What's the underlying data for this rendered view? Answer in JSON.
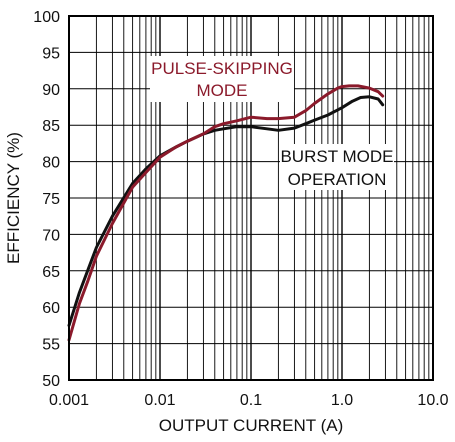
{
  "chart_data": {
    "type": "line",
    "title": "",
    "xlabel": "OUTPUT CURRENT (A)",
    "ylabel": "EFFICIENCY (%)",
    "xscale": "log",
    "xlim": [
      0.001,
      10.0
    ],
    "ylim": [
      50,
      100
    ],
    "grid": true,
    "x_tick_labels": [
      "0.001",
      "0.01",
      "0.1",
      "1.0",
      "10.0"
    ],
    "y_tick_labels": [
      "50",
      "55",
      "60",
      "65",
      "70",
      "75",
      "80",
      "85",
      "90",
      "95",
      "100"
    ],
    "colors": {
      "pulse_skipping": "#8b1a2b",
      "burst_mode": "#111111",
      "grid": "#000000"
    },
    "annotations": [
      {
        "lines": [
          "PULSE-SKIPPING",
          "MODE"
        ],
        "series": "pulse_skipping"
      },
      {
        "lines": [
          "BURST MODE",
          "OPERATION"
        ],
        "series": "burst_mode"
      }
    ],
    "series": [
      {
        "key": "pulse_skipping",
        "x": [
          0.001,
          0.0013,
          0.0016,
          0.002,
          0.003,
          0.005,
          0.007,
          0.01,
          0.015,
          0.02,
          0.03,
          0.04,
          0.05,
          0.07,
          0.1,
          0.15,
          0.2,
          0.3,
          0.4,
          0.5,
          0.7,
          0.9,
          1.0,
          1.2,
          1.5,
          2.0,
          2.5,
          2.8
        ],
        "y": [
          55.5,
          60.5,
          63.5,
          67.0,
          71.5,
          76.5,
          78.5,
          80.6,
          82.0,
          82.8,
          83.8,
          84.8,
          85.2,
          85.6,
          86.1,
          85.9,
          85.9,
          86.1,
          87.0,
          88.0,
          89.3,
          90.1,
          90.3,
          90.4,
          90.4,
          90.1,
          89.6,
          89.0
        ]
      },
      {
        "key": "burst_mode",
        "x": [
          0.001,
          0.0013,
          0.0016,
          0.002,
          0.003,
          0.005,
          0.007,
          0.01,
          0.015,
          0.02,
          0.03,
          0.04,
          0.05,
          0.07,
          0.1,
          0.15,
          0.2,
          0.3,
          0.4,
          0.5,
          0.7,
          1.0,
          1.3,
          1.6,
          2.0,
          2.5,
          2.8
        ],
        "y": [
          57.5,
          62.0,
          65.0,
          68.2,
          72.5,
          77.0,
          79.0,
          80.8,
          82.0,
          82.8,
          83.8,
          84.3,
          84.5,
          84.8,
          84.8,
          84.5,
          84.3,
          84.6,
          85.2,
          85.7,
          86.4,
          87.4,
          88.3,
          88.8,
          88.9,
          88.6,
          87.8
        ]
      }
    ]
  }
}
